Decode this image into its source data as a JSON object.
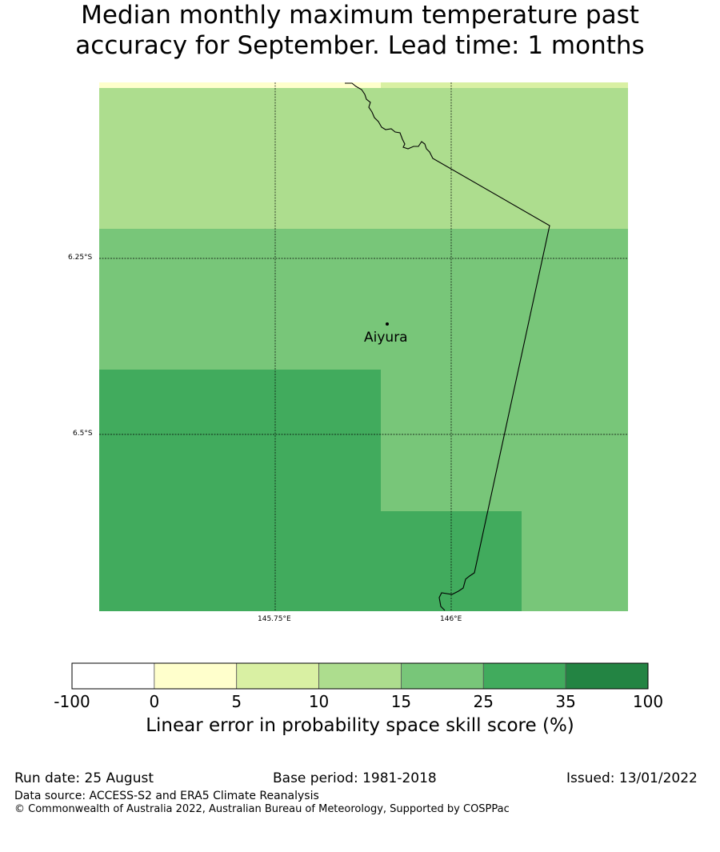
{
  "title": {
    "line1": "Median monthly maximum temperature past",
    "line2": "accuracy for September. Lead time: 1 months"
  },
  "map": {
    "lat_ticks": [
      "6.25°S",
      "6.5°S"
    ],
    "lon_ticks": [
      "145.75°E",
      "146°E"
    ],
    "place_name": "Aiyura",
    "colors": {
      "cell_5_10": "#ffffcc",
      "cell_10_15": "#addd8e",
      "cell_15_25": "#78c679",
      "cell_25_35": "#41ab5d"
    },
    "grid_cells_skill_classes": [
      [
        "0-5",
        "5-10"
      ],
      [
        "10-15",
        "10-15"
      ],
      [
        "15-25",
        "15-25"
      ],
      [
        "25-35",
        "15-25"
      ],
      [
        "25-35",
        "25-35",
        "15-25"
      ]
    ]
  },
  "colorbar": {
    "tick_labels": [
      "-100",
      "0",
      "5",
      "10",
      "15",
      "25",
      "35",
      "100"
    ],
    "colors": [
      "#ffffff",
      "#ffffcc",
      "#d9f0a3",
      "#addd8e",
      "#78c679",
      "#41ab5d",
      "#238443"
    ],
    "label": "Linear error in probability space skill score (%)"
  },
  "footer": {
    "run_date": "Run date: 25 August",
    "base_period": "Base period: 1981-2018",
    "issued": "Issued: 13/01/2022",
    "data_source": "Data source: ACCESS-S2 and ERA5 Climate Reanalysis",
    "copyright": "© Commonwealth of Australia 2022, Australian Bureau of Meteorology, Supported by COSPPac"
  }
}
